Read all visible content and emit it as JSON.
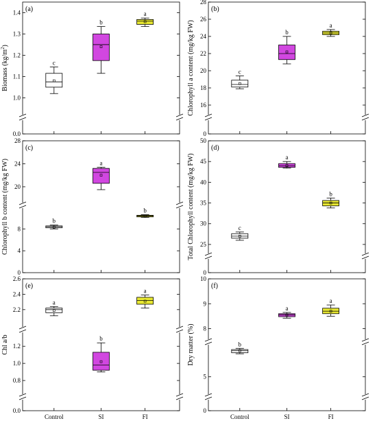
{
  "colors": {
    "control": "#ffffff",
    "SI": "#d147e0",
    "FI": "#e8e832",
    "line": "#000000"
  },
  "chart_data": [
    {
      "type": "box",
      "panel_label": "(a)",
      "ylabel": "Biomass (kg/m",
      "ylabel_sup": "2",
      "ylabel_tail": ")",
      "categories": [
        "Control",
        "SI",
        "FI"
      ],
      "broken_axis": true,
      "yticks_lower": [
        "0.0"
      ],
      "yticks_upper": [
        "1.0",
        "1.1",
        "1.2",
        "1.3",
        "1.4"
      ],
      "ylim_upper": [
        0.94,
        1.45
      ],
      "boxes": [
        {
          "cat": "Control",
          "min": 1.02,
          "q1": 1.05,
          "median": 1.075,
          "q3": 1.115,
          "max": 1.145,
          "mean": 1.08,
          "letter": "c"
        },
        {
          "cat": "SI",
          "min": 1.115,
          "q1": 1.175,
          "median": 1.25,
          "q3": 1.3,
          "max": 1.335,
          "mean": 1.24,
          "letter": "b"
        },
        {
          "cat": "FI",
          "min": 1.335,
          "q1": 1.345,
          "median": 1.36,
          "q3": 1.368,
          "max": 1.375,
          "mean": 1.358,
          "letter": "a"
        }
      ]
    },
    {
      "type": "box",
      "panel_label": "(b)",
      "ylabel": "Chlorophyll a content (mg/kg FW)",
      "ylabel_sup": "",
      "ylabel_tail": "",
      "categories": [
        "Control",
        "SI",
        "FI"
      ],
      "broken_axis": true,
      "yticks_lower": [
        "0"
      ],
      "yticks_upper": [
        "16",
        "18",
        "20",
        "22",
        "24",
        "26",
        "28"
      ],
      "ylim_upper": [
        15.2,
        28
      ],
      "boxes": [
        {
          "cat": "Control",
          "min": 17.9,
          "q1": 18.1,
          "median": 18.4,
          "q3": 18.9,
          "max": 19.4,
          "mean": 18.5,
          "letter": "c"
        },
        {
          "cat": "SI",
          "min": 20.8,
          "q1": 21.3,
          "median": 22.0,
          "q3": 23.0,
          "max": 24.0,
          "mean": 22.2,
          "letter": "b"
        },
        {
          "cat": "FI",
          "min": 24.0,
          "q1": 24.2,
          "median": 24.4,
          "q3": 24.6,
          "max": 24.8,
          "mean": 24.4,
          "letter": "a"
        }
      ]
    },
    {
      "type": "box",
      "panel_label": "(c)",
      "ylabel": "Chlorophyll b content (mg/kg FW)",
      "ylabel_sup": "",
      "ylabel_tail": "",
      "categories": [
        "Control",
        "SI",
        "FI"
      ],
      "broken_axis": true,
      "yticks_lower": [
        "0",
        "4",
        "8"
      ],
      "yticks_upper": [
        "20",
        "24",
        "28"
      ],
      "ylim_lower": [
        0,
        10.8
      ],
      "ylim_upper": [
        18.2,
        28
      ],
      "boxes": [
        {
          "cat": "Control",
          "min": 8.0,
          "q1": 8.2,
          "median": 8.4,
          "q3": 8.55,
          "max": 8.7,
          "mean": 8.3,
          "letter": "b",
          "seg": "lower"
        },
        {
          "cat": "SI",
          "min": 19.5,
          "q1": 20.6,
          "median": 22.5,
          "q3": 23.2,
          "max": 23.4,
          "mean": 22.0,
          "letter": "a",
          "seg": "upper"
        },
        {
          "cat": "FI",
          "min": 10.1,
          "q1": 10.2,
          "median": 10.35,
          "q3": 10.5,
          "max": 10.6,
          "mean": 10.35,
          "letter": "b",
          "seg": "lower"
        }
      ]
    },
    {
      "type": "box",
      "panel_label": "(d)",
      "ylabel": "Total Chlorophyll content (mg/kg FW)",
      "ylabel_sup": "",
      "ylabel_tail": "",
      "categories": [
        "Control",
        "SI",
        "FI"
      ],
      "broken_axis": true,
      "yticks_lower": [
        "0"
      ],
      "yticks_upper": [
        "25",
        "30",
        "35",
        "40",
        "45",
        "50"
      ],
      "ylim_upper": [
        23,
        50
      ],
      "boxes": [
        {
          "cat": "Control",
          "min": 26.0,
          "q1": 26.5,
          "median": 27.0,
          "q3": 27.6,
          "max": 28.0,
          "mean": 27.0,
          "letter": "c"
        },
        {
          "cat": "SI",
          "min": 43.4,
          "q1": 43.6,
          "median": 44.0,
          "q3": 44.5,
          "max": 45.0,
          "mean": 44.0,
          "letter": "a"
        },
        {
          "cat": "FI",
          "min": 33.8,
          "q1": 34.3,
          "median": 35.0,
          "q3": 35.6,
          "max": 36.2,
          "mean": 35.0,
          "letter": "b"
        }
      ]
    },
    {
      "type": "box",
      "panel_label": "(e)",
      "ylabel": "Chl a/b",
      "ylabel_sup": "",
      "ylabel_tail": "",
      "categories": [
        "Control",
        "SI",
        "FI"
      ],
      "broken_axis": true,
      "yticks_lower": [
        "0.0"
      ],
      "yticks_middle": [
        "0.8",
        "1.0",
        "1.2"
      ],
      "yticks_upper": [
        "2.2",
        "2.4",
        "2.6"
      ],
      "ylim_middle": [
        0.68,
        1.33
      ],
      "ylim_upper": [
        2.02,
        2.6
      ],
      "boxes": [
        {
          "cat": "Control",
          "min": 2.12,
          "q1": 2.16,
          "median": 2.2,
          "q3": 2.22,
          "max": 2.24,
          "mean": 2.19,
          "letter": "a",
          "seg": "upper"
        },
        {
          "cat": "SI",
          "min": 0.9,
          "q1": 0.92,
          "median": 0.98,
          "q3": 1.13,
          "max": 1.24,
          "mean": 1.02,
          "letter": "b",
          "seg": "middle"
        },
        {
          "cat": "FI",
          "min": 2.22,
          "q1": 2.27,
          "median": 2.32,
          "q3": 2.36,
          "max": 2.39,
          "mean": 2.31,
          "letter": "a",
          "seg": "upper"
        }
      ]
    },
    {
      "type": "box",
      "panel_label": "(f)",
      "ylabel": "Dry matter (%)",
      "ylabel_sup": "",
      "ylabel_tail": "",
      "categories": [
        "Control",
        "SI",
        "FI"
      ],
      "broken_axis": true,
      "yticks_lower": [
        "0"
      ],
      "yticks_middle": [
        "5"
      ],
      "yticks_upper": [
        "8",
        "9",
        "10"
      ],
      "ylim_middle": [
        4.2,
        6.6
      ],
      "ylim_upper": [
        7.6,
        10
      ],
      "boxes": [
        {
          "cat": "Control",
          "min": 6.15,
          "q1": 6.2,
          "median": 6.3,
          "q3": 6.36,
          "max": 6.42,
          "mean": 6.3,
          "letter": "b",
          "seg": "middle"
        },
        {
          "cat": "SI",
          "min": 8.42,
          "q1": 8.48,
          "median": 8.55,
          "q3": 8.6,
          "max": 8.65,
          "mean": 8.55,
          "letter": "a",
          "seg": "upper"
        },
        {
          "cat": "FI",
          "min": 8.5,
          "q1": 8.6,
          "median": 8.7,
          "q3": 8.82,
          "max": 8.95,
          "mean": 8.7,
          "letter": "a",
          "seg": "upper"
        }
      ]
    }
  ]
}
